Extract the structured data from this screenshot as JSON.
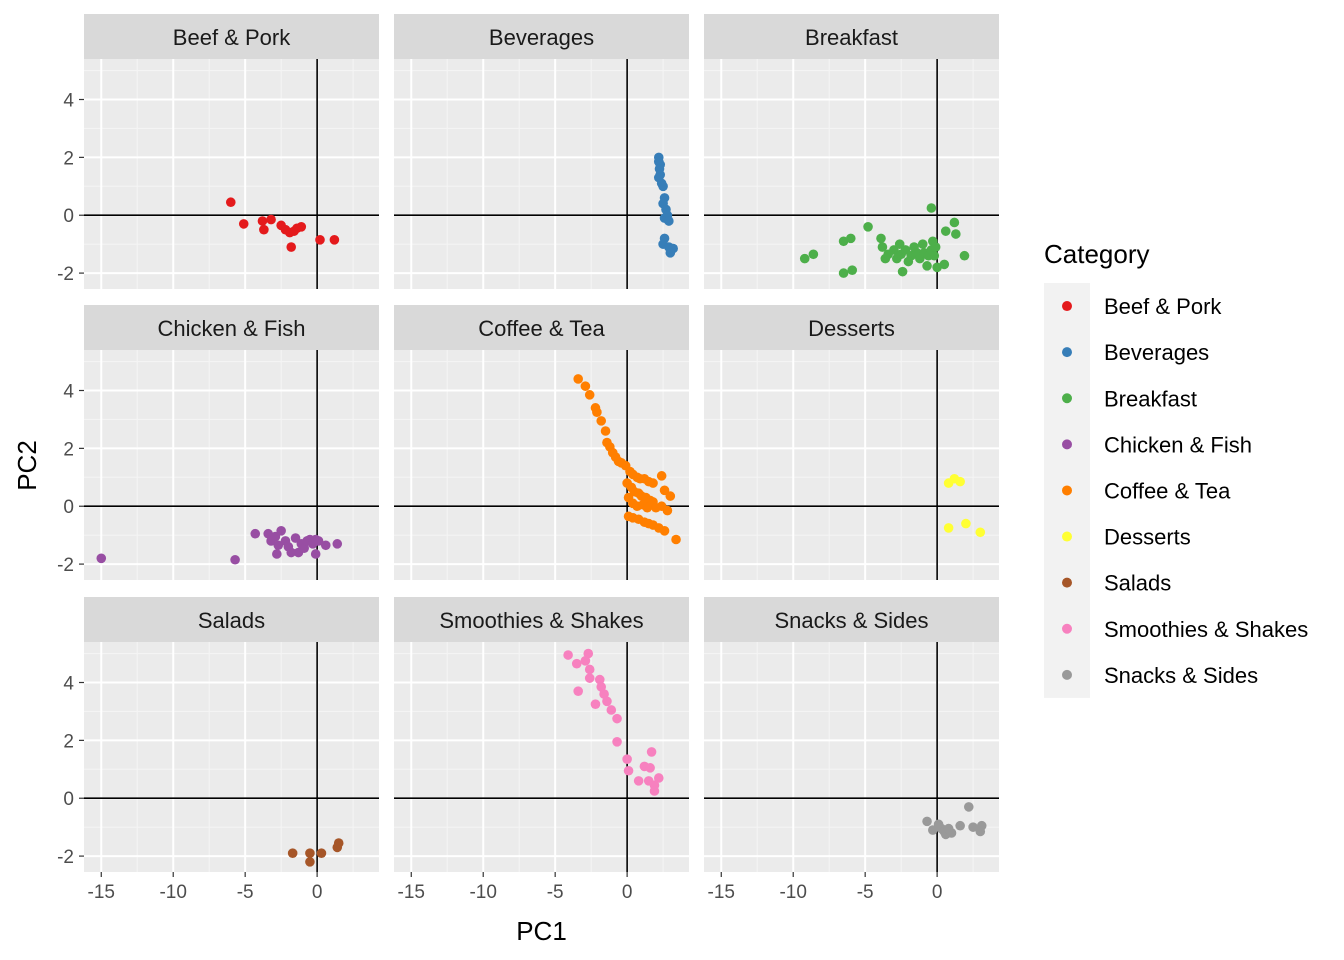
{
  "chart_data": {
    "type": "scatter",
    "facet_by": "Category",
    "xlabel": "PC1",
    "ylabel": "PC2",
    "xlim": [
      -16.2,
      4.3
    ],
    "ylim": [
      -2.55,
      5.4
    ],
    "x_ticks": [
      -15,
      -10,
      -5,
      0
    ],
    "x_tick_labels": [
      "-15",
      "-10",
      "-5",
      "0"
    ],
    "y_ticks": [
      -2,
      0,
      2,
      4
    ],
    "y_tick_labels": [
      "-2",
      "0",
      "2",
      "4"
    ],
    "grid": true,
    "reference_lines": {
      "x": 0,
      "y": 0
    },
    "legend": {
      "title": "Category",
      "position": "right"
    },
    "panels": [
      {
        "name": "Beef & Pork",
        "color": "#E41A1C",
        "points": [
          [
            -6.0,
            0.45
          ],
          [
            -5.1,
            -0.3
          ],
          [
            -3.8,
            -0.2
          ],
          [
            -3.7,
            -0.5
          ],
          [
            -3.2,
            -0.15
          ],
          [
            -2.5,
            -0.35
          ],
          [
            -2.2,
            -0.5
          ],
          [
            -1.9,
            -0.6
          ],
          [
            -1.6,
            -0.55
          ],
          [
            -1.4,
            -0.45
          ],
          [
            -1.1,
            -0.4
          ],
          [
            -1.8,
            -1.1
          ],
          [
            0.2,
            -0.85
          ],
          [
            1.2,
            -0.85
          ]
        ]
      },
      {
        "name": "Beverages",
        "color": "#377EB8",
        "points": [
          [
            2.2,
            2.0
          ],
          [
            2.2,
            1.85
          ],
          [
            2.3,
            1.75
          ],
          [
            2.25,
            1.6
          ],
          [
            2.3,
            1.4
          ],
          [
            2.2,
            1.3
          ],
          [
            2.4,
            1.1
          ],
          [
            2.5,
            1.0
          ],
          [
            2.6,
            0.6
          ],
          [
            2.5,
            0.4
          ],
          [
            2.7,
            0.2
          ],
          [
            2.8,
            0.0
          ],
          [
            2.6,
            -0.1
          ],
          [
            2.9,
            -0.2
          ],
          [
            2.6,
            -0.8
          ],
          [
            2.5,
            -1.0
          ],
          [
            2.9,
            -1.1
          ],
          [
            3.2,
            -1.15
          ],
          [
            3.0,
            -1.3
          ]
        ]
      },
      {
        "name": "Breakfast",
        "color": "#4DAF4A",
        "points": [
          [
            -9.2,
            -1.5
          ],
          [
            -8.6,
            -1.35
          ],
          [
            -6.5,
            -0.9
          ],
          [
            -6.0,
            -0.8
          ],
          [
            -6.5,
            -2.0
          ],
          [
            -5.9,
            -1.9
          ],
          [
            -4.8,
            -0.4
          ],
          [
            -3.9,
            -0.8
          ],
          [
            -3.8,
            -1.1
          ],
          [
            -3.6,
            -1.5
          ],
          [
            -3.4,
            -1.35
          ],
          [
            -3.0,
            -1.2
          ],
          [
            -2.8,
            -1.5
          ],
          [
            -2.6,
            -1.0
          ],
          [
            -2.5,
            -1.35
          ],
          [
            -2.2,
            -1.2
          ],
          [
            -2.0,
            -1.6
          ],
          [
            -1.8,
            -1.4
          ],
          [
            -2.4,
            -1.95
          ],
          [
            -1.6,
            -1.1
          ],
          [
            -1.4,
            -1.3
          ],
          [
            -1.2,
            -1.5
          ],
          [
            -1.0,
            -1.0
          ],
          [
            -0.9,
            -1.3
          ],
          [
            -0.7,
            -1.75
          ],
          [
            -0.6,
            -1.4
          ],
          [
            -0.4,
            -1.2
          ],
          [
            -0.3,
            -0.9
          ],
          [
            -0.2,
            -1.4
          ],
          [
            -0.1,
            -1.1
          ],
          [
            0.0,
            -1.8
          ],
          [
            0.5,
            -1.7
          ],
          [
            -0.4,
            0.25
          ],
          [
            0.6,
            -0.55
          ],
          [
            1.2,
            -0.25
          ],
          [
            1.3,
            -0.65
          ],
          [
            1.9,
            -1.4
          ]
        ]
      },
      {
        "name": "Chicken & Fish",
        "color": "#984EA3",
        "points": [
          [
            -15.0,
            -1.8
          ],
          [
            -5.7,
            -1.85
          ],
          [
            -4.3,
            -0.95
          ],
          [
            -3.4,
            -0.95
          ],
          [
            -3.2,
            -1.2
          ],
          [
            -2.9,
            -1.05
          ],
          [
            -2.7,
            -1.35
          ],
          [
            -2.8,
            -1.65
          ],
          [
            -2.5,
            -0.85
          ],
          [
            -2.2,
            -1.2
          ],
          [
            -2.0,
            -1.4
          ],
          [
            -1.8,
            -1.6
          ],
          [
            -1.5,
            -1.1
          ],
          [
            -1.3,
            -1.6
          ],
          [
            -1.1,
            -1.3
          ],
          [
            -0.9,
            -1.45
          ],
          [
            -0.7,
            -1.2
          ],
          [
            -0.5,
            -1.15
          ],
          [
            -0.3,
            -1.3
          ],
          [
            -0.1,
            -1.15
          ],
          [
            0.1,
            -1.2
          ],
          [
            -0.1,
            -1.65
          ],
          [
            0.6,
            -1.35
          ],
          [
            1.4,
            -1.3
          ]
        ]
      },
      {
        "name": "Coffee & Tea",
        "color": "#FF7F00",
        "points": [
          [
            -3.4,
            4.4
          ],
          [
            -2.9,
            4.15
          ],
          [
            -2.6,
            3.85
          ],
          [
            -2.2,
            3.4
          ],
          [
            -2.1,
            3.25
          ],
          [
            -1.8,
            2.95
          ],
          [
            -1.5,
            2.6
          ],
          [
            -1.4,
            2.2
          ],
          [
            -1.2,
            2.05
          ],
          [
            -1.0,
            1.85
          ],
          [
            -0.8,
            1.7
          ],
          [
            -0.6,
            1.55
          ],
          [
            -0.4,
            1.5
          ],
          [
            -0.1,
            1.4
          ],
          [
            0.2,
            1.2
          ],
          [
            0.4,
            1.1
          ],
          [
            0.7,
            1.0
          ],
          [
            0.9,
            0.95
          ],
          [
            1.2,
            0.95
          ],
          [
            1.5,
            0.85
          ],
          [
            1.8,
            0.8
          ],
          [
            2.4,
            1.05
          ],
          [
            2.6,
            0.55
          ],
          [
            3.0,
            0.35
          ],
          [
            0.0,
            0.8
          ],
          [
            0.3,
            0.65
          ],
          [
            0.5,
            0.5
          ],
          [
            0.8,
            0.45
          ],
          [
            1.0,
            0.35
          ],
          [
            1.3,
            0.3
          ],
          [
            1.6,
            0.2
          ],
          [
            0.1,
            0.3
          ],
          [
            0.4,
            0.1
          ],
          [
            0.7,
            0.0
          ],
          [
            1.1,
            0.05
          ],
          [
            1.4,
            -0.05
          ],
          [
            1.8,
            0.15
          ],
          [
            2.0,
            -0.05
          ],
          [
            2.4,
            0.0
          ],
          [
            2.8,
            -0.15
          ],
          [
            0.1,
            -0.35
          ],
          [
            0.4,
            -0.4
          ],
          [
            0.8,
            -0.45
          ],
          [
            1.2,
            -0.55
          ],
          [
            1.5,
            -0.6
          ],
          [
            1.8,
            -0.65
          ],
          [
            2.2,
            -0.75
          ],
          [
            2.6,
            -0.85
          ],
          [
            3.4,
            -1.15
          ]
        ]
      },
      {
        "name": "Desserts",
        "color": "#FFFF33",
        "points": [
          [
            0.8,
            0.8
          ],
          [
            1.2,
            0.95
          ],
          [
            1.6,
            0.85
          ],
          [
            0.8,
            -0.75
          ],
          [
            2.0,
            -0.6
          ],
          [
            3.0,
            -0.9
          ]
        ]
      },
      {
        "name": "Salads",
        "color": "#A65628",
        "points": [
          [
            -1.7,
            -1.9
          ],
          [
            -0.5,
            -1.9
          ],
          [
            -0.5,
            -2.2
          ],
          [
            0.3,
            -1.9
          ],
          [
            1.4,
            -1.7
          ],
          [
            1.5,
            -1.55
          ]
        ]
      },
      {
        "name": "Smoothies & Shakes",
        "color": "#F781BF",
        "points": [
          [
            -4.1,
            4.95
          ],
          [
            -3.5,
            4.65
          ],
          [
            -2.7,
            5.0
          ],
          [
            -2.9,
            4.75
          ],
          [
            -2.6,
            4.45
          ],
          [
            -2.6,
            4.15
          ],
          [
            -3.4,
            3.7
          ],
          [
            -1.9,
            4.1
          ],
          [
            -1.8,
            3.85
          ],
          [
            -1.6,
            3.6
          ],
          [
            -2.2,
            3.25
          ],
          [
            -1.4,
            3.35
          ],
          [
            -1.1,
            3.05
          ],
          [
            -0.7,
            2.75
          ],
          [
            -0.7,
            1.95
          ],
          [
            0.0,
            1.35
          ],
          [
            0.1,
            0.95
          ],
          [
            0.8,
            0.6
          ],
          [
            1.2,
            1.1
          ],
          [
            1.6,
            1.05
          ],
          [
            1.7,
            1.6
          ],
          [
            1.5,
            0.6
          ],
          [
            2.2,
            0.7
          ],
          [
            1.9,
            0.45
          ],
          [
            1.9,
            0.25
          ]
        ]
      },
      {
        "name": "Snacks & Sides",
        "color": "#999999",
        "points": [
          [
            -0.7,
            -0.8
          ],
          [
            -0.3,
            -1.1
          ],
          [
            0.1,
            -0.9
          ],
          [
            0.3,
            -1.05
          ],
          [
            0.5,
            -1.15
          ],
          [
            0.6,
            -1.25
          ],
          [
            0.8,
            -1.05
          ],
          [
            1.0,
            -1.2
          ],
          [
            1.6,
            -0.95
          ],
          [
            2.2,
            -0.3
          ],
          [
            2.5,
            -1.0
          ],
          [
            3.0,
            -1.15
          ],
          [
            3.1,
            -0.95
          ]
        ]
      }
    ]
  }
}
